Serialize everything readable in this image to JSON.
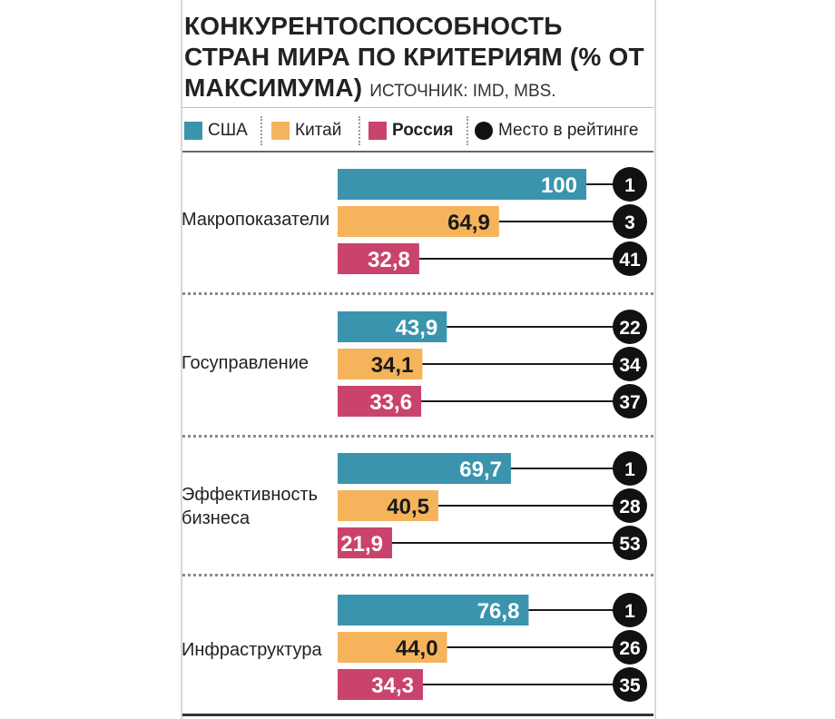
{
  "title": {
    "main": "КОНКУРЕНТОСПОСОБНОСТЬ СТРАН МИРА ПО КРИТЕРИЯМ (% ОТ МАКСИМУМА)",
    "source": "ИСТОЧНИК: IMD, MBS."
  },
  "legend": {
    "usa": "США",
    "china": "Китай",
    "russia": "Россия",
    "rank": "Место в рейтинге"
  },
  "colors": {
    "usa": "#3a94ad",
    "china": "#f5b35c",
    "russia": "#c9436d",
    "rank": "#111111"
  },
  "chart_data": {
    "type": "bar",
    "orientation": "horizontal",
    "title": "КОНКУРЕНТОСПОСОБНОСТЬ СТРАН МИРА ПО КРИТЕРИЯМ (% ОТ МАКСИМУМА)",
    "xlim": [
      0,
      100
    ],
    "grid": false,
    "legend_position": "top",
    "categories": [
      "Макропоказатели",
      "Госуправление",
      "Эффективность бизнеса",
      "Инфраструктура"
    ],
    "category_lines": [
      [
        "Макропоказатели"
      ],
      [
        "Госуправление"
      ],
      [
        "Эффективность",
        "бизнеса"
      ],
      [
        "Инфраструктура"
      ]
    ],
    "series": [
      {
        "name": "США",
        "key": "usa",
        "values": [
          100,
          43.9,
          69.7,
          76.8
        ],
        "labels": [
          "100",
          "43,9",
          "69,7",
          "76,8"
        ],
        "ranks": [
          "1",
          "22",
          "1",
          "1"
        ]
      },
      {
        "name": "Китай",
        "key": "china",
        "values": [
          64.9,
          34.1,
          40.5,
          44.0
        ],
        "labels": [
          "64,9",
          "34,1",
          "40,5",
          "44,0"
        ],
        "ranks": [
          "3",
          "34",
          "28",
          "26"
        ]
      },
      {
        "name": "Россия",
        "key": "russia",
        "values": [
          32.8,
          33.6,
          21.9,
          34.3
        ],
        "labels": [
          "32,8",
          "33,6",
          "21,9",
          "34,3"
        ],
        "ranks": [
          "41",
          "37",
          "53",
          "35"
        ]
      }
    ],
    "rank_legend": "Место в рейтинге"
  }
}
